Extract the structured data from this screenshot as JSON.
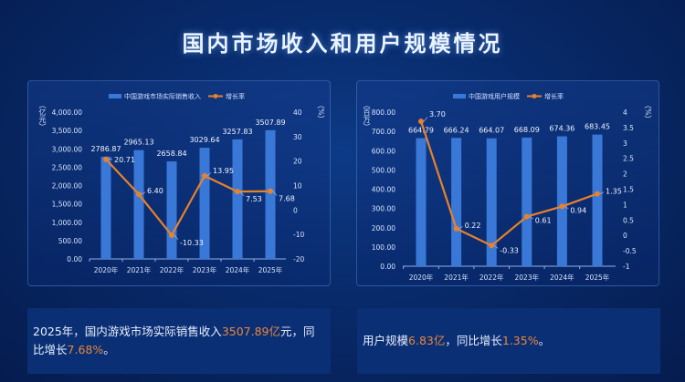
{
  "title": "国内市场收入和用户规模情况",
  "colors": {
    "bar": "#3a78d8",
    "line": "#e8822a",
    "background": "#082a6a"
  },
  "chart_data": [
    {
      "type": "bar",
      "categories": [
        "2020年",
        "2021年",
        "2022年",
        "2023年",
        "2024年",
        "2025年"
      ],
      "series": [
        {
          "name": "中国游戏市场实际销售收入",
          "type": "bar",
          "axis": "left",
          "values": [
            2786.87,
            2965.13,
            2658.84,
            3029.64,
            3257.83,
            3507.89
          ],
          "labels": [
            "2786.87",
            "2965.13",
            "2658.84",
            "3029.64",
            "3257.83",
            "3507.89"
          ]
        },
        {
          "name": "增长率",
          "type": "line",
          "axis": "right",
          "values": [
            20.71,
            6.4,
            -10.33,
            13.95,
            7.53,
            7.68
          ],
          "labels": [
            "20.71",
            "6.40",
            "-10.33",
            "13.95",
            "7.53",
            "7.68"
          ]
        }
      ],
      "ylabel_left": "（亿元）",
      "ylabel_right": "（%）",
      "ylim_left": [
        0,
        4000
      ],
      "ylim_right": [
        -20,
        40
      ],
      "yticks_left": [
        "0.00",
        "500.00",
        "1,000.00",
        "1,500.00",
        "2,000.00",
        "2,500.00",
        "3,000.00",
        "3,500.00",
        "4,000.00"
      ],
      "yticks_right": [
        "-20",
        "-10",
        "0",
        "10",
        "20",
        "30",
        "40"
      ],
      "legend": "top",
      "grid": false
    },
    {
      "type": "bar",
      "categories": [
        "2020年",
        "2021年",
        "2022年",
        "2023年",
        "2024年",
        "2025年"
      ],
      "series": [
        {
          "name": "中国游戏用户规模",
          "type": "bar",
          "axis": "left",
          "values": [
            664.79,
            666.24,
            664.07,
            668.09,
            674.36,
            683.45
          ],
          "labels": [
            "664.79",
            "666.24",
            "664.07",
            "668.09",
            "674.36",
            "683.45"
          ]
        },
        {
          "name": "增长率",
          "type": "line",
          "axis": "right",
          "values": [
            3.7,
            0.22,
            -0.33,
            0.61,
            0.94,
            1.35
          ],
          "labels": [
            "3.70",
            "0.22",
            "-0.33",
            "0.61",
            "0.94",
            "1.35"
          ]
        }
      ],
      "ylabel_left": "（百万）",
      "ylabel_right": "（%）",
      "ylim_left": [
        0,
        800
      ],
      "ylim_right": [
        -1,
        4
      ],
      "yticks_left": [
        "0.00",
        "100.00",
        "200.00",
        "300.00",
        "400.00",
        "500.00",
        "600.00",
        "700.00",
        "800.00"
      ],
      "yticks_right": [
        "-1",
        "-0.5",
        "0",
        "0.5",
        "1",
        "1.5",
        "2",
        "2.5",
        "3",
        "3.5",
        "4"
      ],
      "legend": "top",
      "grid": false
    }
  ],
  "notes": {
    "left": {
      "pre": "2025年，国内游戏市场实际销售收入",
      "hl1": "3507.89亿",
      "mid": "元，同比增长",
      "hl2": "7.68%",
      "post": "。"
    },
    "right": {
      "pre": "用户规模",
      "hl1": "6.83亿",
      "mid": "，同比增长",
      "hl2": "1.35%",
      "post": "。"
    }
  }
}
